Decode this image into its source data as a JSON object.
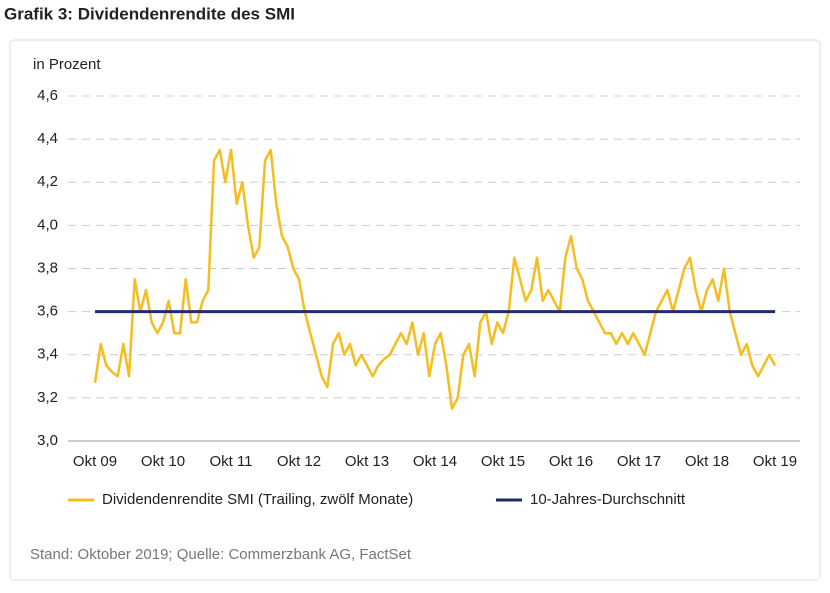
{
  "chart_data": {
    "type": "line",
    "title": "Grafik 3: Dividendenrendite des SMI",
    "y_axis_label": "in Prozent",
    "source": "Stand: Oktober 2019; Quelle: Commerzbank AG, FactSet",
    "categories": [
      "Okt 09",
      null,
      null,
      null,
      null,
      null,
      null,
      null,
      null,
      null,
      null,
      null,
      "Okt 10",
      null,
      null,
      null,
      null,
      null,
      null,
      null,
      null,
      null,
      null,
      null,
      "Okt 11",
      null,
      null,
      null,
      null,
      null,
      null,
      null,
      null,
      null,
      null,
      null,
      "Okt 12",
      null,
      null,
      null,
      null,
      null,
      null,
      null,
      null,
      null,
      null,
      null,
      "Okt 13",
      null,
      null,
      null,
      null,
      null,
      null,
      null,
      null,
      null,
      null,
      null,
      "Okt 14",
      null,
      null,
      null,
      null,
      null,
      null,
      null,
      null,
      null,
      null,
      null,
      "Okt 15",
      null,
      null,
      null,
      null,
      null,
      null,
      null,
      null,
      null,
      null,
      null,
      "Okt 16",
      null,
      null,
      null,
      null,
      null,
      null,
      null,
      null,
      null,
      null,
      null,
      "Okt 17",
      null,
      null,
      null,
      null,
      null,
      null,
      null,
      null,
      null,
      null,
      null,
      "Okt 18",
      null,
      null,
      null,
      null,
      null,
      null,
      null,
      null,
      null,
      null,
      null,
      "Okt 19"
    ],
    "series": [
      {
        "name": "Dividendenrendite SMI (Trailing, zwölf Monate)",
        "color": "#f5bd1f",
        "values": [
          3.27,
          3.45,
          3.35,
          3.32,
          3.3,
          3.45,
          3.3,
          3.75,
          3.6,
          3.7,
          3.55,
          3.5,
          3.55,
          3.65,
          3.5,
          3.5,
          3.75,
          3.55,
          3.55,
          3.65,
          3.7,
          4.3,
          4.35,
          4.2,
          4.35,
          4.1,
          4.2,
          4.0,
          3.85,
          3.9,
          4.3,
          4.35,
          4.1,
          3.95,
          3.9,
          3.8,
          3.75,
          3.6,
          3.5,
          3.4,
          3.3,
          3.25,
          3.45,
          3.5,
          3.4,
          3.45,
          3.35,
          3.4,
          3.35,
          3.3,
          3.35,
          3.38,
          3.4,
          3.45,
          3.5,
          3.45,
          3.55,
          3.4,
          3.5,
          3.3,
          3.45,
          3.5,
          3.35,
          3.15,
          3.2,
          3.4,
          3.45,
          3.3,
          3.55,
          3.6,
          3.45,
          3.55,
          3.5,
          3.6,
          3.85,
          3.75,
          3.65,
          3.7,
          3.85,
          3.65,
          3.7,
          3.65,
          3.6,
          3.85,
          3.95,
          3.8,
          3.75,
          3.65,
          3.6,
          3.55,
          3.5,
          3.5,
          3.45,
          3.5,
          3.45,
          3.5,
          3.45,
          3.4,
          3.5,
          3.6,
          3.65,
          3.7,
          3.6,
          3.7,
          3.8,
          3.85,
          3.7,
          3.6,
          3.7,
          3.75,
          3.65,
          3.8,
          3.6,
          3.5,
          3.4,
          3.45,
          3.35,
          3.3,
          3.35,
          3.4,
          3.35
        ]
      },
      {
        "name": "10-Jahres-Durchschnitt",
        "color": "#1f2d6b",
        "values": [
          3.6,
          3.6,
          3.6,
          3.6,
          3.6,
          3.6,
          3.6,
          3.6,
          3.6,
          3.6,
          3.6,
          3.6,
          3.6,
          3.6,
          3.6,
          3.6,
          3.6,
          3.6,
          3.6,
          3.6,
          3.6,
          3.6,
          3.6,
          3.6,
          3.6,
          3.6,
          3.6,
          3.6,
          3.6,
          3.6,
          3.6,
          3.6,
          3.6,
          3.6,
          3.6,
          3.6,
          3.6,
          3.6,
          3.6,
          3.6,
          3.6,
          3.6,
          3.6,
          3.6,
          3.6,
          3.6,
          3.6,
          3.6,
          3.6,
          3.6,
          3.6,
          3.6,
          3.6,
          3.6,
          3.6,
          3.6,
          3.6,
          3.6,
          3.6,
          3.6,
          3.6,
          3.6,
          3.6,
          3.6,
          3.6,
          3.6,
          3.6,
          3.6,
          3.6,
          3.6,
          3.6,
          3.6,
          3.6,
          3.6,
          3.6,
          3.6,
          3.6,
          3.6,
          3.6,
          3.6,
          3.6,
          3.6,
          3.6,
          3.6,
          3.6,
          3.6,
          3.6,
          3.6,
          3.6,
          3.6,
          3.6,
          3.6,
          3.6,
          3.6,
          3.6,
          3.6,
          3.6,
          3.6,
          3.6,
          3.6,
          3.6,
          3.6,
          3.6,
          3.6,
          3.6,
          3.6,
          3.6,
          3.6,
          3.6,
          3.6,
          3.6,
          3.6,
          3.6,
          3.6,
          3.6,
          3.6,
          3.6,
          3.6,
          3.6,
          3.6,
          3.6
        ]
      }
    ],
    "ylim": [
      3.0,
      4.6
    ],
    "yticks": [
      {
        "value": 3.0,
        "label": "3,0"
      },
      {
        "value": 3.2,
        "label": "3,2"
      },
      {
        "value": 3.4,
        "label": "3,4"
      },
      {
        "value": 3.6,
        "label": "3,6"
      },
      {
        "value": 3.8,
        "label": "3,8"
      },
      {
        "value": 4.0,
        "label": "4,0"
      },
      {
        "value": 4.2,
        "label": "4,2"
      },
      {
        "value": 4.4,
        "label": "4,4"
      },
      {
        "value": 4.6,
        "label": "4,6"
      }
    ],
    "grid": true,
    "legend": "bottom"
  }
}
